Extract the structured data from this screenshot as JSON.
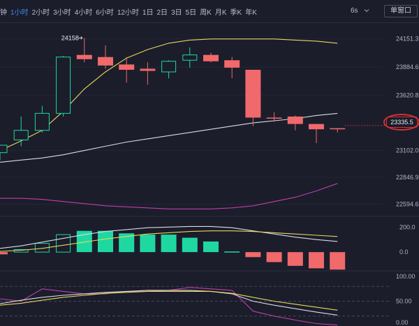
{
  "toolbar": {
    "timeframes": [
      "钟",
      "1小时",
      "2小时",
      "3小时",
      "4小时",
      "6小时",
      "12小时",
      "1日",
      "2日",
      "3日",
      "5日",
      "周K",
      "月K",
      "季K",
      "年K"
    ],
    "active_index": 1,
    "refresh_interval": "6s",
    "window_button": "单窗口"
  },
  "colors": {
    "up": "#1fd8a1",
    "down": "#f0696b",
    "ma_yellow": "#e7d85a",
    "ma_white": "#d9dbe6",
    "band_purple": "#c13fa8",
    "active": "#3d8bf2"
  },
  "icons": [
    "chevron-down-icon",
    "collapse-arrow-icon"
  ],
  "chart_data": [
    {
      "type": "candlestick",
      "pane": "price",
      "y_ticks": [
        "24151.3",
        "23884.6",
        "23620.8",
        "23102.0",
        "22846.9",
        "22594.6"
      ],
      "ylim": [
        22480,
        24300
      ],
      "current_price": "23335.5",
      "max_label": "24158",
      "candles": [
        {
          "o": 23080,
          "h": 23150,
          "l": 23010,
          "c": 23150
        },
        {
          "o": 23200,
          "h": 23420,
          "l": 23140,
          "c": 23290
        },
        {
          "o": 23290,
          "h": 23520,
          "l": 23270,
          "c": 23450
        },
        {
          "o": 23450,
          "h": 23990,
          "l": 23420,
          "c": 23980
        },
        {
          "o": 24000,
          "h": 24160,
          "l": 23930,
          "c": 23960
        },
        {
          "o": 23980,
          "h": 24090,
          "l": 23870,
          "c": 23900
        },
        {
          "o": 23910,
          "h": 23980,
          "l": 23740,
          "c": 23860
        },
        {
          "o": 23870,
          "h": 23930,
          "l": 23720,
          "c": 23850
        },
        {
          "o": 23840,
          "h": 23950,
          "l": 23780,
          "c": 23940
        },
        {
          "o": 23950,
          "h": 24070,
          "l": 23880,
          "c": 24000
        },
        {
          "o": 24000,
          "h": 24020,
          "l": 23930,
          "c": 23940
        },
        {
          "o": 23950,
          "h": 23980,
          "l": 23780,
          "c": 23880
        },
        {
          "o": 23860,
          "h": 23860,
          "l": 23330,
          "c": 23410
        },
        {
          "o": 23410,
          "h": 23460,
          "l": 23370,
          "c": 23400
        },
        {
          "o": 23420,
          "h": 23430,
          "l": 23290,
          "c": 23350
        },
        {
          "o": 23350,
          "h": 23350,
          "l": 23170,
          "c": 23300
        },
        {
          "o": 23310,
          "h": 23310,
          "l": 23270,
          "c": 23300
        }
      ],
      "ma_yellow": [
        23100,
        23190,
        23290,
        23470,
        23680,
        23840,
        23970,
        24050,
        24110,
        24140,
        24150,
        24150,
        24150,
        24150,
        24140,
        24130,
        24110
      ],
      "ma_white": [
        22990,
        23010,
        23030,
        23060,
        23100,
        23140,
        23180,
        23210,
        23240,
        23270,
        23300,
        23330,
        23360,
        23380,
        23400,
        23430,
        23450
      ],
      "band": [
        22650,
        22650,
        22640,
        22620,
        22600,
        22580,
        22570,
        22560,
        22550,
        22550,
        22550,
        22560,
        22580,
        22620,
        22660,
        22720,
        22790
      ]
    },
    {
      "type": "bar",
      "pane": "macd",
      "y_ticks": [
        "200.0",
        "0.0"
      ],
      "ylim": [
        -150,
        280
      ],
      "values": [
        -18,
        20,
        70,
        140,
        170,
        170,
        150,
        140,
        140,
        115,
        85,
        5,
        -40,
        -80,
        -110,
        -130,
        -140
      ],
      "signal_white": [
        30,
        50,
        80,
        110,
        140,
        165,
        180,
        195,
        200,
        205,
        205,
        195,
        170,
        145,
        120,
        100,
        85
      ],
      "signal_yellow": [
        5,
        15,
        30,
        55,
        80,
        105,
        125,
        145,
        155,
        165,
        170,
        170,
        165,
        155,
        145,
        135,
        125
      ]
    },
    {
      "type": "line",
      "pane": "oscillator",
      "y_ticks": [
        "100.00",
        "50.00",
        "0.00"
      ],
      "ylim": [
        0,
        110
      ],
      "reference_levels": [
        80,
        50,
        20
      ],
      "purple": [
        55,
        50,
        75,
        70,
        65,
        65,
        70,
        70,
        72,
        78,
        75,
        72,
        30,
        20,
        12,
        5,
        2
      ],
      "white": [
        45,
        52,
        58,
        62,
        65,
        68,
        70,
        72,
        72,
        72,
        70,
        65,
        50,
        42,
        35,
        28,
        22
      ],
      "yellow": [
        42,
        46,
        52,
        58,
        62,
        66,
        68,
        70,
        70,
        70,
        70,
        66,
        58,
        50,
        44,
        38,
        32
      ]
    }
  ]
}
